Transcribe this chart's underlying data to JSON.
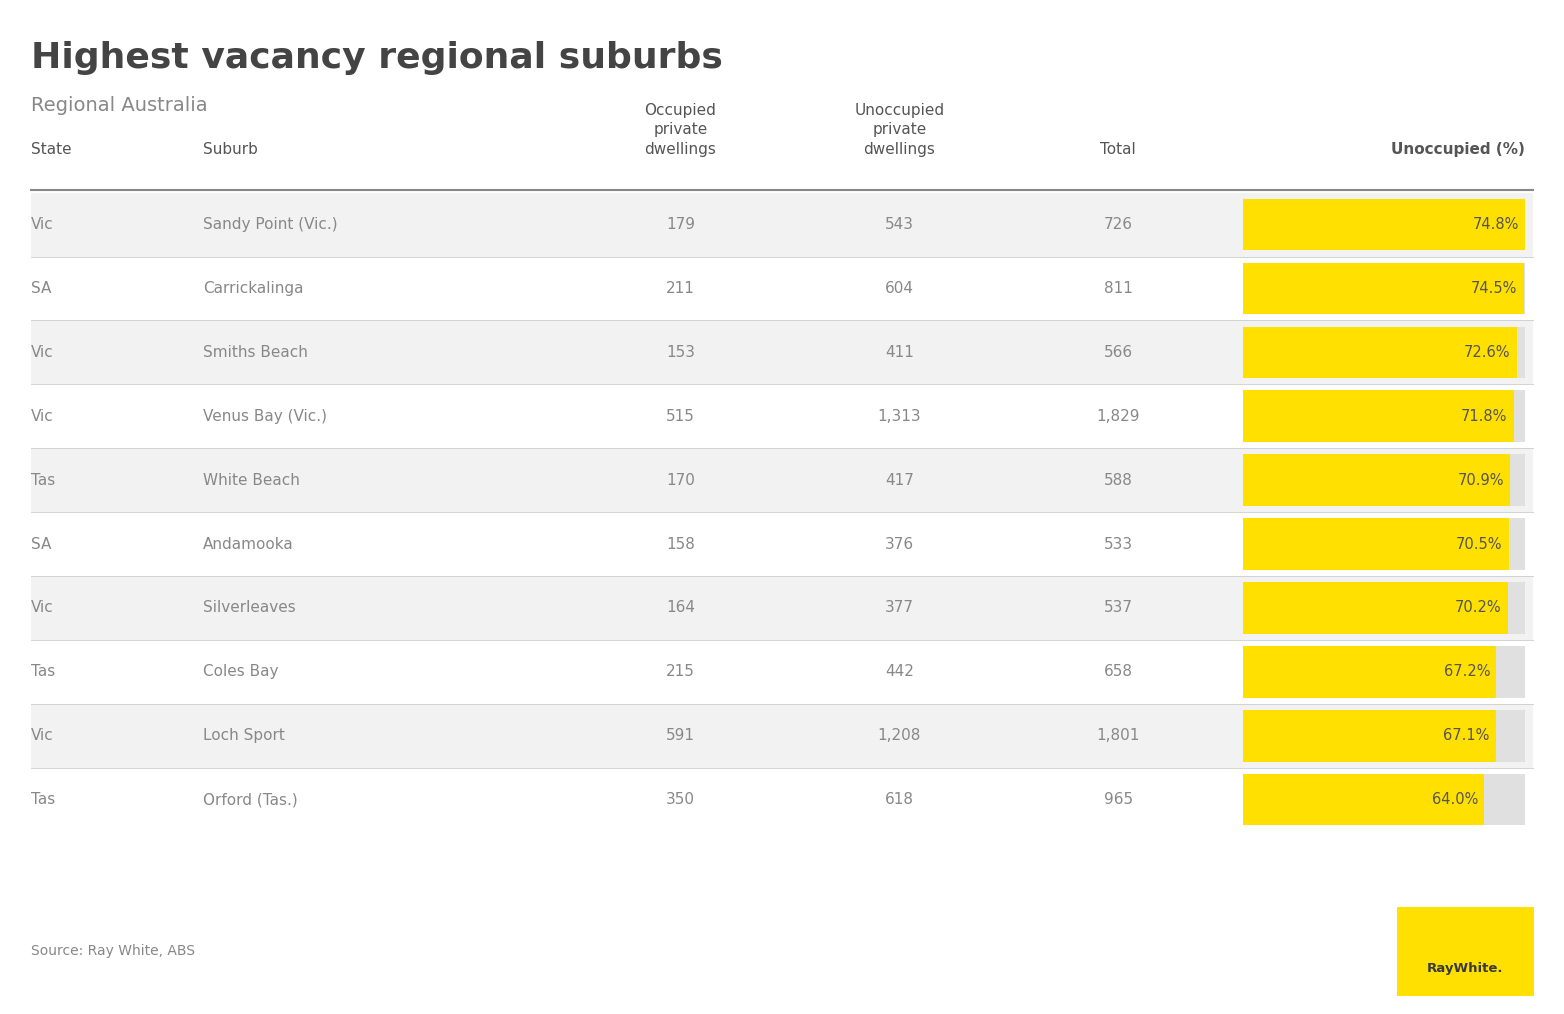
{
  "title": "Highest vacancy regional suburbs",
  "subtitle": "Regional Australia",
  "source": "Source: Ray White, ABS",
  "col_headers": [
    "State",
    "Suburb",
    "Occupied\nprivate\ndwellings",
    "Unoccupied\nprivate\ndwellings",
    "Total",
    "Unoccupied (%)"
  ],
  "rows": [
    [
      "Vic",
      "Sandy Point (Vic.)",
      "179",
      "543",
      "726",
      74.8
    ],
    [
      "SA",
      "Carrickalinga",
      "211",
      "604",
      "811",
      74.5
    ],
    [
      "Vic",
      "Smiths Beach",
      "153",
      "411",
      "566",
      72.6
    ],
    [
      "Vic",
      "Venus Bay (Vic.)",
      "515",
      "1,313",
      "1,829",
      71.8
    ],
    [
      "Tas",
      "White Beach",
      "170",
      "417",
      "588",
      70.9
    ],
    [
      "SA",
      "Andamooka",
      "158",
      "376",
      "533",
      70.5
    ],
    [
      "Vic",
      "Silverleaves",
      "164",
      "377",
      "537",
      70.2
    ],
    [
      "Tas",
      "Coles Bay",
      "215",
      "442",
      "658",
      67.2
    ],
    [
      "Vic",
      "Loch Sport",
      "591",
      "1,208",
      "1,801",
      67.1
    ],
    [
      "Tas",
      "Orford (Tas.)",
      "350",
      "618",
      "965",
      64.0
    ]
  ],
  "yellow": "#FFE000",
  "bar_max_pct": 74.8,
  "header_color": "#555555",
  "cell_color": "#888888",
  "row_bg_even": "#F2F2F2",
  "row_bg_odd": "#FFFFFF",
  "title_color": "#444444",
  "subtitle_color": "#888888"
}
